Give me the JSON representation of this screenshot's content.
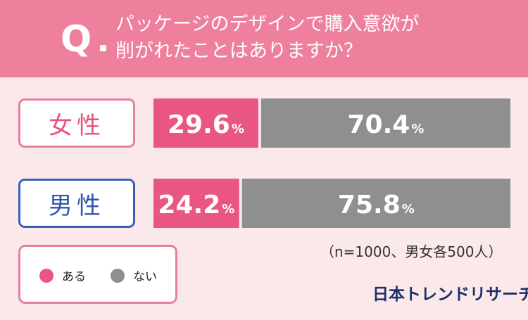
{
  "question": {
    "mark": "Q",
    "line1": "パッケージのデザインで購入意欲が",
    "line2": "削がれたことはありますか？"
  },
  "note": "（n=1000、男女各500人）",
  "brand": "日本トレンドリサーチ",
  "colors": {
    "yes": "#ea5682",
    "no": "#8f8f8f",
    "header": "#ee7f9d",
    "background": "#fbe8ea"
  },
  "legend": [
    {
      "label": "ある",
      "color": "#ea5682"
    },
    {
      "label": "ない",
      "color": "#8f8f8f"
    }
  ],
  "chart_data": {
    "type": "bar",
    "orientation": "horizontal",
    "stacked": true,
    "categories": [
      "女性",
      "男性"
    ],
    "series": [
      {
        "name": "ある",
        "values": [
          29.6,
          24.2
        ]
      },
      {
        "name": "ない",
        "values": [
          70.4,
          75.8
        ]
      }
    ],
    "unit": "%",
    "xlim": [
      0,
      100
    ]
  }
}
